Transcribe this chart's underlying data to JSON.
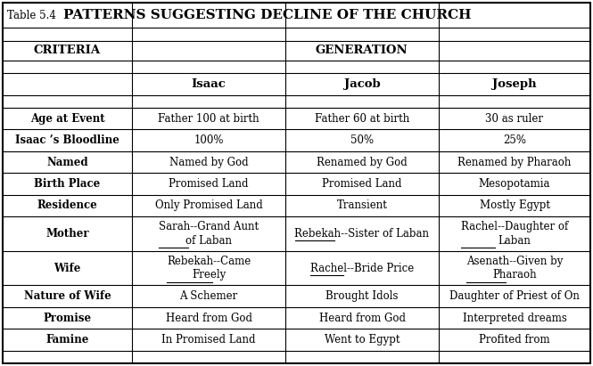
{
  "title_prefix": "Table 5.4",
  "title_main": "PATTERNS SUGGESTING DECLINE OF THE CHURCH",
  "rows": [
    [
      "Age at Event",
      "Father 100 at birth",
      "Father 60 at birth",
      "30 as ruler"
    ],
    [
      "Isaac ’s Bloodline",
      "100%",
      "50%",
      "25%"
    ],
    [
      "Named",
      "Named by God",
      "Renamed by God",
      "Renamed by Pharaoh"
    ],
    [
      "Birth Place",
      "Promised Land",
      "Promised Land",
      "Mesopotamia"
    ],
    [
      "Residence",
      "Only Promised Land",
      "Transient",
      "Mostly Egypt"
    ],
    [
      "Mother",
      "Sarah--Grand Aunt\nof Laban",
      "Rebekah--Sister of Laban",
      "Rachel--Daughter of\nLaban"
    ],
    [
      "Wife",
      "Rebekah--Came\nFreely",
      "Rachel--Bride Price",
      "Asenath--Given by\nPharaoh"
    ],
    [
      "Nature of Wife",
      "A Schemer",
      "Brought Idols",
      "Daughter of Priest of On"
    ],
    [
      "Promise",
      "Heard from God",
      "Heard from God",
      "Interpreted dreams"
    ],
    [
      "Famine",
      "In Promised Land",
      "Went to Egypt",
      "Profited from"
    ]
  ],
  "underline_info": [
    {
      "row": 5,
      "col": 1,
      "word": "Sarah",
      "text": "Sarah--Grand Aunt\nof Laban"
    },
    {
      "row": 5,
      "col": 2,
      "word": "Rebekah",
      "text": "Rebekah--Sister of Laban"
    },
    {
      "row": 5,
      "col": 3,
      "word": "Rachel",
      "text": "Rachel--Daughter of\nLaban"
    },
    {
      "row": 6,
      "col": 1,
      "word": "Rebekah",
      "text": "Rebekah--Came\nFreely"
    },
    {
      "row": 6,
      "col": 2,
      "word": "Rachel",
      "text": "Rachel--Bride Price"
    },
    {
      "row": 6,
      "col": 3,
      "word": "Asenath",
      "text": "Asenath--Given by\nPharaoh"
    }
  ],
  "bg_color": "#ffffff",
  "border_color": "#000000",
  "fig_width": 6.65,
  "fig_height": 4.11,
  "dpi": 100
}
